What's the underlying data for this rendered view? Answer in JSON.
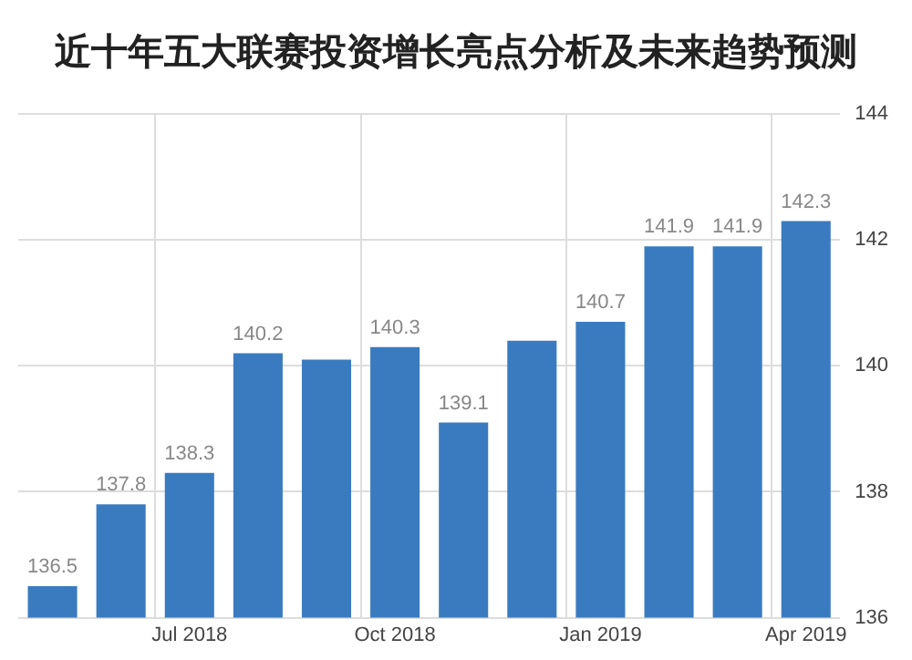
{
  "chart_data": {
    "type": "bar",
    "title": "近十年五大联赛投资增长亮点分析及未来趋势预测",
    "categories": [
      null,
      null,
      "Jul 2018",
      null,
      null,
      "Oct 2018",
      null,
      null,
      "Jan 2019",
      null,
      null,
      "Apr 2019"
    ],
    "values": [
      136.5,
      137.8,
      138.3,
      140.2,
      140.1,
      140.3,
      139.1,
      140.4,
      140.7,
      141.9,
      141.9,
      142.3
    ],
    "value_labels": [
      "136.5",
      "137.8",
      "138.3",
      "140.2",
      null,
      "140.3",
      "139.1",
      null,
      "140.7",
      "141.9",
      "141.9",
      "142.3"
    ],
    "color": "#3a7bbf",
    "ylim": [
      136,
      144
    ],
    "yticks": [
      136,
      138,
      140,
      142,
      144
    ],
    "grid": true
  }
}
